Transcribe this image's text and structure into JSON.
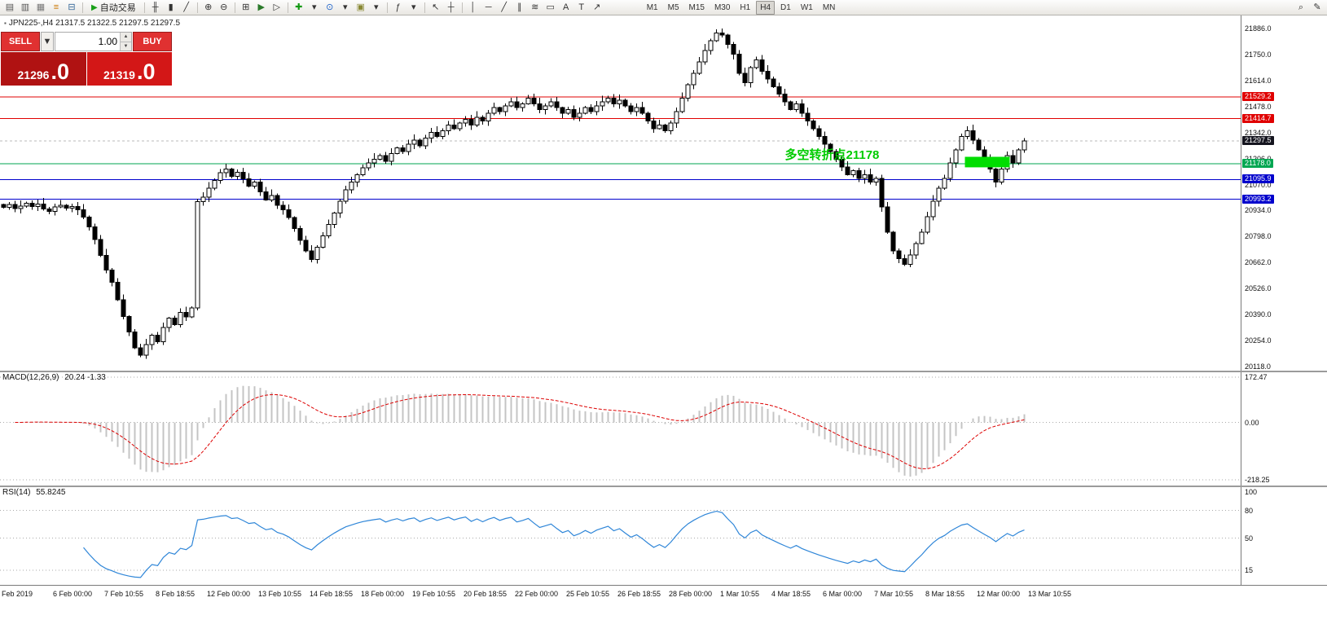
{
  "toolbar": {
    "auto_trading_label": "自动交易",
    "icons": [
      {
        "name": "new-order-icon",
        "glyph": "▤",
        "color": "#555555"
      },
      {
        "name": "chart-window-icon",
        "glyph": "▥",
        "color": "#555555"
      },
      {
        "name": "profiles-icon",
        "glyph": "▦",
        "color": "#777777"
      },
      {
        "name": "market-watch-icon",
        "glyph": "≡",
        "color": "#cc7700"
      },
      {
        "name": "navigator-icon",
        "glyph": "⊟",
        "color": "#336699"
      },
      {
        "sep": true
      },
      {
        "name": "auto-trading-button",
        "type": "autotrading",
        "glyph": "▶",
        "color": "#18a018"
      },
      {
        "sep": true
      },
      {
        "name": "bar-chart-icon",
        "glyph": "╫",
        "color": "#333333"
      },
      {
        "name": "candlestick-chart-icon",
        "glyph": "▮",
        "color": "#333333"
      },
      {
        "name": "line-chart-icon",
        "glyph": "╱",
        "color": "#333333"
      },
      {
        "sep": true
      },
      {
        "name": "zoom-in-icon",
        "glyph": "⊕",
        "color": "#333333"
      },
      {
        "name": "zoom-out-icon",
        "glyph": "⊖",
        "color": "#333333"
      },
      {
        "sep": true
      },
      {
        "name": "tile-windows-icon",
        "glyph": "⊞",
        "color": "#333333"
      },
      {
        "name": "auto-scroll-icon",
        "glyph": "▶",
        "color": "#2a7a2a"
      },
      {
        "name": "chart-shift-icon",
        "glyph": "▷",
        "color": "#333333"
      },
      {
        "sep": true
      },
      {
        "name": "new-chart-add-icon",
        "glyph": "✚",
        "color": "#119911"
      },
      {
        "name": "new-chart-caret-icon",
        "glyph": "▾",
        "color": "#333333"
      },
      {
        "name": "periods-clock-icon",
        "glyph": "⊙",
        "color": "#2266cc"
      },
      {
        "name": "periods-caret-icon",
        "glyph": "▾",
        "color": "#333333"
      },
      {
        "name": "templates-icon",
        "glyph": "▣",
        "color": "#888833"
      },
      {
        "name": "templates-caret-icon",
        "glyph": "▾",
        "color": "#333333"
      },
      {
        "sep": true
      },
      {
        "name": "indicators-icon",
        "glyph": "ƒ",
        "color": "#333333"
      },
      {
        "name": "indicators-caret-icon",
        "glyph": "▾",
        "color": "#333333"
      },
      {
        "sep": true
      },
      {
        "name": "cursor-icon",
        "glyph": "↖",
        "color": "#333333"
      },
      {
        "name": "crosshair-icon",
        "glyph": "┼",
        "color": "#333333"
      },
      {
        "sep": true
      },
      {
        "name": "vertical-line-icon",
        "glyph": "│",
        "color": "#333333"
      },
      {
        "name": "horizontal-line-icon",
        "glyph": "─",
        "color": "#333333"
      },
      {
        "name": "trendline-icon",
        "glyph": "╱",
        "color": "#333333"
      },
      {
        "name": "channel-icon",
        "glyph": "∥",
        "color": "#333333"
      },
      {
        "name": "fibonacci-icon",
        "glyph": "≋",
        "color": "#333333"
      },
      {
        "name": "shapes-icon",
        "glyph": "▭",
        "color": "#333333"
      },
      {
        "name": "text-icon",
        "glyph": "A",
        "color": "#333333"
      },
      {
        "name": "text-label-icon",
        "glyph": "T",
        "color": "#333333"
      },
      {
        "name": "arrows-tool-icon",
        "glyph": "↗",
        "color": "#333333"
      }
    ],
    "timeframes": [
      {
        "label": "M1"
      },
      {
        "label": "M5"
      },
      {
        "label": "M15"
      },
      {
        "label": "M30"
      },
      {
        "label": "H1"
      },
      {
        "label": "H4",
        "active": true
      },
      {
        "label": "D1"
      },
      {
        "label": "W1"
      },
      {
        "label": "MN"
      }
    ],
    "right_icons": [
      {
        "name": "search-icon",
        "glyph": "⌕",
        "color": "#333333"
      },
      {
        "name": "quick-edit-icon",
        "glyph": "✎",
        "color": "#333333"
      }
    ]
  },
  "symbol_header": "JPN225-,H4 21317.5 21322.5 21297.5 21297.5",
  "trade_panel": {
    "sell_label": "SELL",
    "buy_label": "BUY",
    "dropdown_glyph": "▼",
    "spin_up_glyph": "▲",
    "spin_down_glyph": "▼",
    "volume": "1.00",
    "sell_price_main": "21296",
    "sell_price_frac": ".0",
    "buy_price_main": "21319",
    "buy_price_frac": ".0",
    "sell_box_color": "#b01212",
    "buy_box_color": "#d31717",
    "button_color": "#e03131"
  },
  "chart_data": {
    "type": "candlestick",
    "symbol": "JPN225-",
    "period": "H4",
    "last_candle_ohlc": {
      "open": 21317.5,
      "high": 21322.5,
      "low": 21297.5,
      "close": 21297.5
    },
    "price_axis": {
      "max": 21886.0,
      "min": 20118.0,
      "ticks": [
        21886.0,
        21750.0,
        21614.0,
        21478.0,
        21342.0,
        21206.0,
        21070.0,
        20934.0,
        20798.0,
        20662.0,
        20526.0,
        20390.0,
        20254.0,
        20118.0
      ]
    },
    "time_axis": [
      "Feb 2019",
      "6 Feb 00:00",
      "7 Feb 10:55",
      "8 Feb 18:55",
      "12 Feb 00:00",
      "13 Feb 10:55",
      "14 Feb 18:55",
      "18 Feb 00:00",
      "19 Feb 10:55",
      "20 Feb 18:55",
      "22 Feb 00:00",
      "25 Feb 10:55",
      "26 Feb 18:55",
      "28 Feb 00:00",
      "1 Mar 10:55",
      "4 Mar 18:55",
      "6 Mar 00:00",
      "7 Mar 10:55",
      "8 Mar 18:55",
      "12 Mar 00:00",
      "13 Mar 10:55"
    ],
    "closes": [
      20950,
      20965,
      20945,
      20958,
      20972,
      20955,
      20968,
      20942,
      20930,
      20952,
      20962,
      20946,
      20956,
      20938,
      20900,
      20848,
      20782,
      20700,
      20622,
      20560,
      20468,
      20380,
      20298,
      20215,
      20178,
      20232,
      20281,
      20248,
      20322,
      20372,
      20338,
      20402,
      20378,
      20425,
      20980,
      21005,
      21052,
      21092,
      21132,
      21152,
      21112,
      21135,
      21100,
      21062,
      21082,
      21032,
      20990,
      21012,
      20962,
      20938,
      20898,
      20840,
      20778,
      20722,
      20678,
      20742,
      20802,
      20862,
      20922,
      20982,
      21042,
      21082,
      21122,
      21158,
      21182,
      21202,
      21222,
      21192,
      21232,
      21262,
      21242,
      21282,
      21302,
      21272,
      21312,
      21342,
      21322,
      21352,
      21382,
      21362,
      21392,
      21412,
      21382,
      21422,
      21402,
      21442,
      21472,
      21452,
      21482,
      21502,
      21472,
      21492,
      21522,
      21492,
      21462,
      21482,
      21502,
      21472,
      21442,
      21462,
      21422,
      21442,
      21472,
      21452,
      21482,
      21502,
      21522,
      21492,
      21512,
      21482,
      21452,
      21472,
      21442,
      21402,
      21362,
      21382,
      21352,
      21392,
      21452,
      21522,
      21592,
      21652,
      21712,
      21772,
      21822,
      21862,
      21852,
      21802,
      21752,
      21652,
      21602,
      21682,
      21722,
      21662,
      21622,
      21582,
      21542,
      21502,
      21462,
      21492,
      21442,
      21402,
      21362,
      21322,
      21282,
      21242,
      21202,
      21162,
      21122,
      21142,
      21102,
      21122,
      21082,
      21102,
      20952,
      20822,
      20722,
      20682,
      20652,
      20702,
      20762,
      20822,
      20902,
      20982,
      21052,
      21102,
      21182,
      21252,
      21322,
      21352,
      21302,
      21252,
      21202,
      21152,
      21082,
      21152,
      21222,
      21182,
      21252,
      21297.5
    ],
    "levels": [
      {
        "price": 21529.2,
        "label": "21529.2",
        "color": "#e00000"
      },
      {
        "price": 21414.7,
        "label": "21414.7",
        "color": "#e00000"
      },
      {
        "price": 21178.0,
        "label": "21178.0",
        "color": "#00a651"
      },
      {
        "price": 21095.9,
        "label": "21095.9",
        "color": "#0000cc"
      },
      {
        "price": 20993.2,
        "label": "20993.2",
        "color": "#0000cc"
      }
    ],
    "bid_badge": {
      "price": 21297.5,
      "label": "21297.5",
      "color": "#15151f"
    },
    "annotation": {
      "text": "多空转折点21178",
      "color": "#00cc00",
      "candle_index": 137,
      "price": 21230
    },
    "highlight_box": {
      "from_candle": 169,
      "to_candle": 176,
      "price_top": 21215,
      "price_bottom": 21160,
      "color": "#00dd00"
    },
    "macd": {
      "label": "MACD(12,26,9)",
      "values_text": "20.24 -1.33",
      "fast": 12,
      "slow": 26,
      "signal": 9,
      "axis_max": 172.47,
      "axis_min": -218.25,
      "axis_ticks": [
        172.47,
        0.0,
        -218.25
      ],
      "histogram_color": "#c4c4c4",
      "signal_color": "#dd0000"
    },
    "rsi": {
      "label": "RSI(14)",
      "value_text": "55.8245",
      "period": 14,
      "axis_ticks": [
        100,
        80,
        50,
        15
      ],
      "gridlines": [
        80,
        50,
        15
      ],
      "line_color": "#2f86d8"
    }
  }
}
